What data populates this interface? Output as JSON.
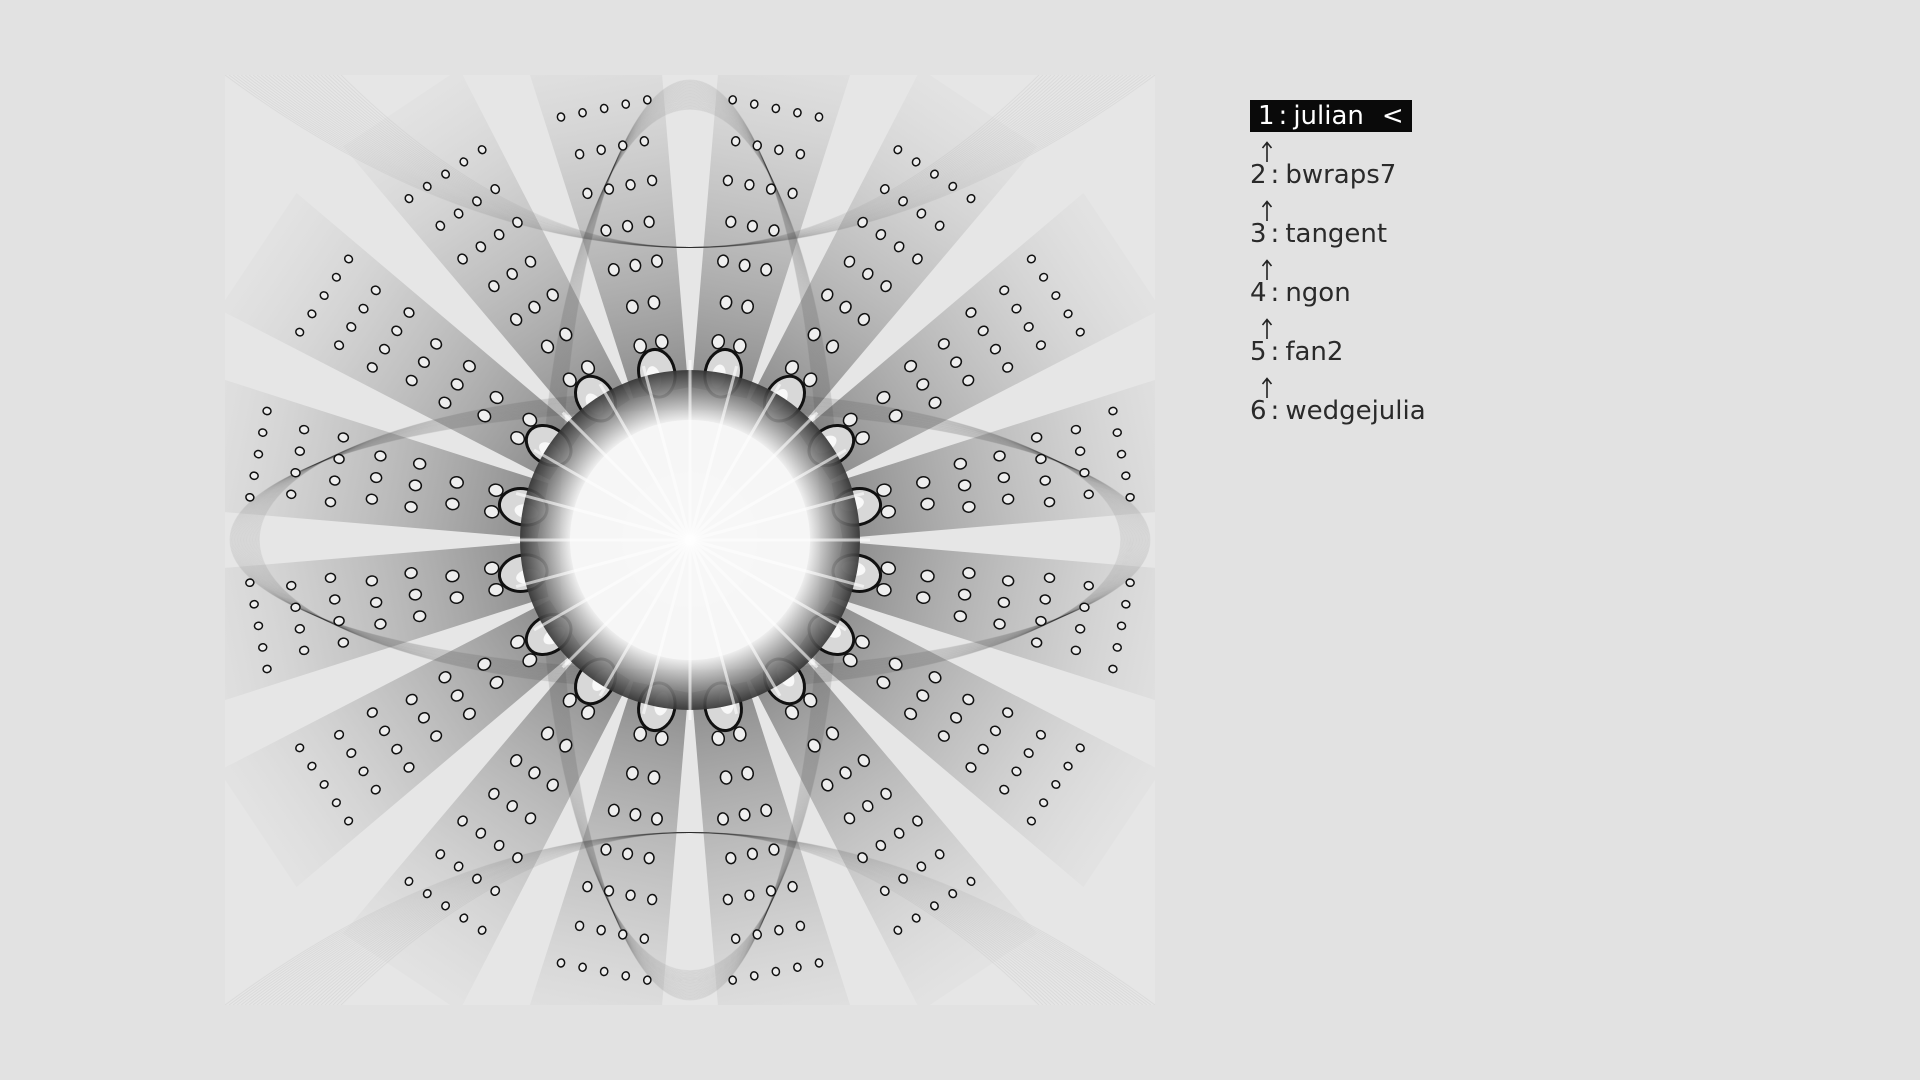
{
  "fractal_view": {
    "icon": "flame-fractal-render",
    "colors": {
      "background": "#e2e2e2",
      "ink": "#111111",
      "highlight": "#ffffff"
    }
  },
  "variations": {
    "items": [
      {
        "index": "1",
        "name": "julian",
        "selected": true,
        "cursor": "<"
      },
      {
        "index": "2",
        "name": "bwraps7",
        "selected": false
      },
      {
        "index": "3",
        "name": "tangent",
        "selected": false
      },
      {
        "index": "4",
        "name": "ngon",
        "selected": false
      },
      {
        "index": "5",
        "name": "fan2",
        "selected": false
      },
      {
        "index": "6",
        "name": "wedgejulia",
        "selected": false
      }
    ],
    "separator": ":",
    "connector_icon": "arrow-up-icon"
  }
}
